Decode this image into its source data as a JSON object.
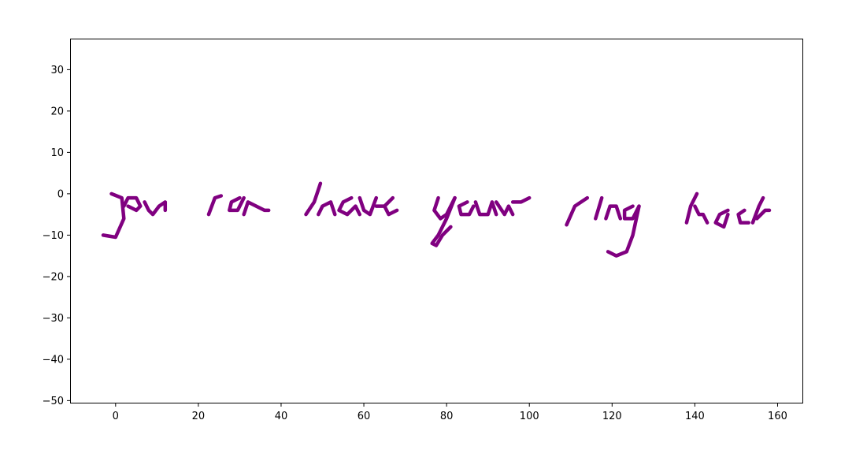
{
  "chart_data": {
    "type": "line",
    "title": "",
    "xlabel": "",
    "ylabel": "",
    "xlim": [
      -11,
      166
    ],
    "ylim": [
      -50.5,
      37.5
    ],
    "xticks": [
      0,
      20,
      40,
      60,
      80,
      100,
      120,
      140,
      160
    ],
    "yticks": [
      -50,
      -40,
      -30,
      -20,
      -10,
      0,
      10,
      20,
      30
    ],
    "grid": false,
    "legend": "none",
    "line_color": "#800080",
    "series": [
      {
        "x": [
          -3,
          0,
          2,
          1.5,
          -1
        ],
        "y": [
          -10,
          -10.5,
          -6,
          -1,
          0
        ]
      },
      {
        "x": [
          2,
          3,
          5,
          6,
          5,
          3
        ],
        "y": [
          -3,
          -1,
          -1,
          -3,
          -4,
          -3
        ]
      },
      {
        "x": [
          7,
          8,
          9,
          10.5,
          12,
          12
        ],
        "y": [
          -2,
          -4,
          -5,
          -3,
          -2,
          -4
        ]
      },
      {
        "x": [
          22.5,
          24,
          25.5
        ],
        "y": [
          -5,
          -1,
          -0.5
        ]
      },
      {
        "x": [
          30,
          28,
          27.5,
          29.5,
          31
        ],
        "y": [
          -1,
          -2,
          -4,
          -4,
          -1
        ]
      },
      {
        "x": [
          31,
          32,
          34,
          36,
          37
        ],
        "y": [
          -5,
          -2,
          -3,
          -4,
          -4
        ]
      },
      {
        "x": [
          46,
          48,
          49,
          49.5
        ],
        "y": [
          -5,
          -2,
          1,
          2.5
        ]
      },
      {
        "x": [
          49,
          50,
          52,
          53
        ],
        "y": [
          -5,
          -3,
          -2,
          -5
        ]
      },
      {
        "x": [
          57,
          55,
          54,
          56,
          58,
          59
        ],
        "y": [
          -1,
          -2,
          -4,
          -5,
          -3,
          -5
        ]
      },
      {
        "x": [
          59,
          60,
          61.5,
          63
        ],
        "y": [
          -1,
          -4,
          -5,
          -1
        ]
      },
      {
        "x": [
          63,
          65,
          67,
          65,
          66,
          68
        ],
        "y": [
          -3,
          -3,
          -1,
          -3,
          -5,
          -4
        ]
      },
      {
        "x": [
          78,
          77,
          78.5,
          80,
          82
        ],
        "y": [
          -1,
          -4,
          -6,
          -5,
          -1
        ]
      },
      {
        "x": [
          82,
          80,
          78,
          76.5,
          77.5,
          79,
          81
        ],
        "y": [
          -1,
          -6,
          -10,
          -12,
          -12.5,
          -10,
          -8
        ]
      },
      {
        "x": [
          85,
          83,
          83.5,
          85.5,
          86.5
        ],
        "y": [
          -2,
          -3,
          -5,
          -5,
          -3
        ]
      },
      {
        "x": [
          87,
          88,
          90,
          91,
          92
        ],
        "y": [
          -2,
          -5,
          -5,
          -2,
          -5
        ]
      },
      {
        "x": [
          92,
          94,
          95,
          96
        ],
        "y": [
          -2,
          -5,
          -3,
          -5
        ]
      },
      {
        "x": [
          96,
          98,
          100
        ],
        "y": [
          -2,
          -2,
          -1
        ]
      },
      {
        "x": [
          109,
          111,
          114
        ],
        "y": [
          -7.5,
          -3,
          -1
        ]
      },
      {
        "x": [
          116,
          117.5
        ],
        "y": [
          -6,
          -1
        ]
      },
      {
        "x": [
          118.5,
          119.5,
          121,
          122
        ],
        "y": [
          -6,
          -3,
          -3,
          -6
        ]
      },
      {
        "x": [
          125,
          123,
          123,
          125,
          126.5
        ],
        "y": [
          -3,
          -4,
          -6,
          -6,
          -3
        ]
      },
      {
        "x": [
          126.5,
          125,
          123.5,
          121,
          119
        ],
        "y": [
          -3,
          -10,
          -14,
          -15,
          -14
        ]
      },
      {
        "x": [
          138,
          139,
          140.5
        ],
        "y": [
          -7,
          -3,
          0
        ]
      },
      {
        "x": [
          140,
          141,
          142,
          143
        ],
        "y": [
          -3,
          -5,
          -5,
          -7
        ]
      },
      {
        "x": [
          148,
          146,
          145,
          147,
          148
        ],
        "y": [
          -4,
          -5,
          -7,
          -8,
          -5
        ]
      },
      {
        "x": [
          152,
          150.5,
          151,
          153
        ],
        "y": [
          -4,
          -5,
          -7,
          -7
        ]
      },
      {
        "x": [
          154,
          155.5,
          156.5
        ],
        "y": [
          -7,
          -3,
          -1
        ]
      },
      {
        "x": [
          155,
          157,
          158
        ],
        "y": [
          -6,
          -4,
          -4
        ]
      }
    ]
  }
}
